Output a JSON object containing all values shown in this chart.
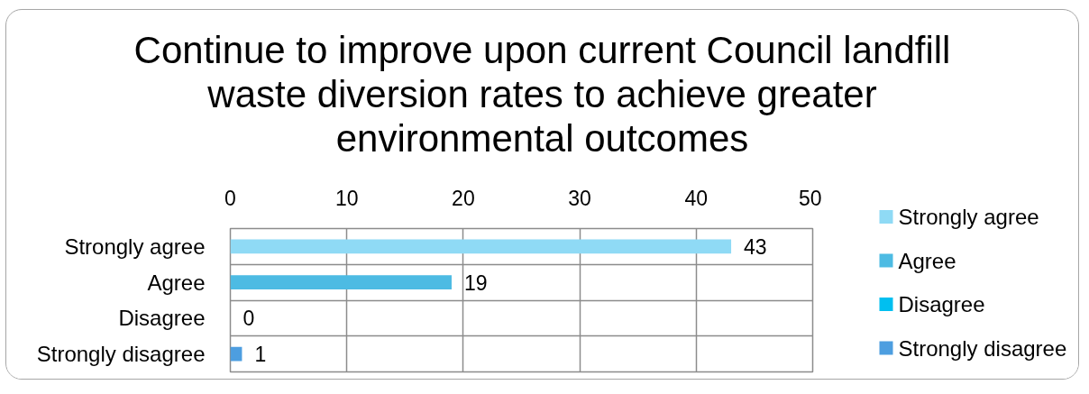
{
  "chart_data": {
    "type": "bar",
    "orientation": "horizontal",
    "stacked": true,
    "title": "Continue to improve upon current Council landfill waste diversion rates to achieve greater environmental outcomes",
    "categories": [
      "Strongly agree",
      "Agree",
      "Disagree",
      "Strongly disagree"
    ],
    "series": [
      {
        "name": "Strongly agree",
        "color": "#8fdaf5",
        "values": [
          43,
          null,
          null,
          null
        ]
      },
      {
        "name": "Agree",
        "color": "#4dbbe3",
        "values": [
          null,
          19,
          null,
          null
        ]
      },
      {
        "name": "Disagree",
        "color": "#00bff0",
        "values": [
          null,
          null,
          0,
          null
        ]
      },
      {
        "name": "Strongly disagree",
        "color": "#4d9ee0",
        "values": [
          null,
          null,
          null,
          1
        ]
      }
    ],
    "xlim": [
      0,
      50
    ],
    "xticks": [
      0,
      10,
      20,
      30,
      40,
      50
    ],
    "grid": true,
    "legend": "right",
    "data_labels": true
  }
}
